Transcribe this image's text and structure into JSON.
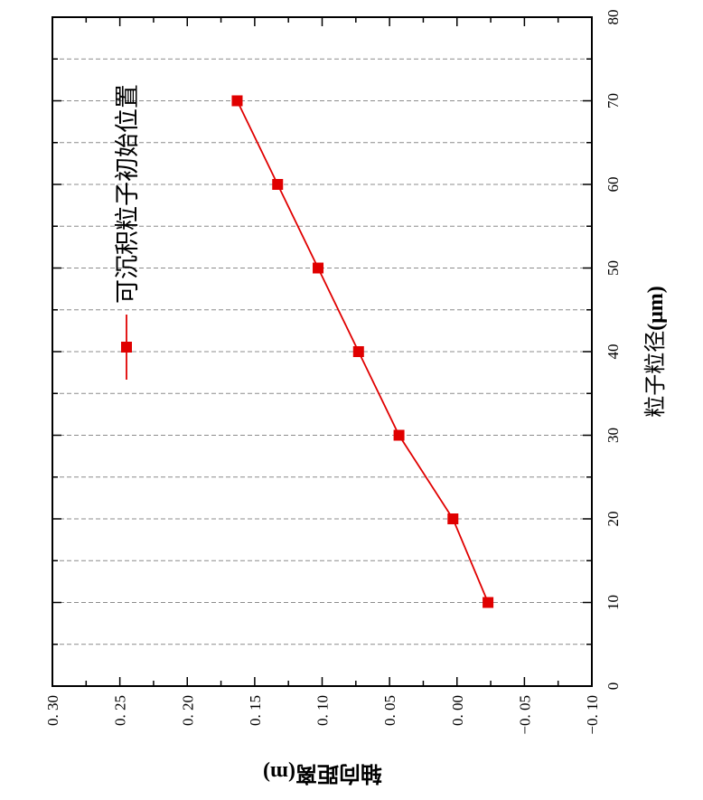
{
  "chart_data": {
    "type": "line",
    "orientation": "rotated-90",
    "xlabel": "粒子粒径",
    "xlabel_unit": "(μm)",
    "ylabel": "轴向距离",
    "ylabel_unit": "(m)",
    "xlim": [
      0,
      80
    ],
    "ylim": [
      -0.1,
      0.3
    ],
    "x_ticks": [
      "0",
      "10",
      "20",
      "30",
      "40",
      "50",
      "60",
      "70",
      "80"
    ],
    "y_ticks": [
      "0. 30",
      "0. 25",
      "0. 20",
      "0. 15",
      "0. 10",
      "0. 05",
      "0. 00",
      "−0. 05",
      "−0. 10"
    ],
    "y_tick_values": [
      0.3,
      0.25,
      0.2,
      0.15,
      0.1,
      0.05,
      0.0,
      -0.05,
      -0.1
    ],
    "grid": true,
    "legend_position": "top-left",
    "series": [
      {
        "name": "可沉积粒子初始位置",
        "color": "#e00000",
        "marker": "square",
        "x": [
          10,
          20,
          30,
          40,
          50,
          60,
          70
        ],
        "y": [
          -0.023,
          0.003,
          0.043,
          0.073,
          0.103,
          0.133,
          0.163
        ]
      }
    ]
  }
}
